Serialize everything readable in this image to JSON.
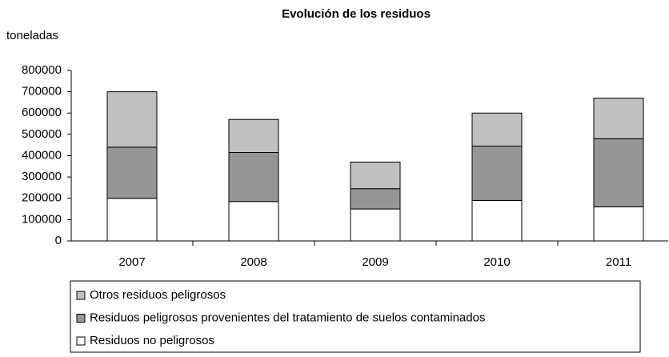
{
  "chart_data": {
    "type": "stacked_bar",
    "title": "Evolución de los residuos",
    "y_label": "toneladas",
    "categories": [
      "2007",
      "2008",
      "2009",
      "2010",
      "2011"
    ],
    "series": [
      {
        "name": "Otros residuos peligrosos",
        "color": "#c0c0c0",
        "values": [
          260000,
          155000,
          125000,
          155000,
          190000
        ]
      },
      {
        "name": "Residuos peligrosos provenientes del tratamiento de suelos contaminados",
        "color": "#969696",
        "values": [
          240000,
          230000,
          95000,
          255000,
          320000
        ]
      },
      {
        "name": "Residuos no peligrosos",
        "color": "#ffffff",
        "values": [
          200000,
          185000,
          150000,
          190000,
          160000
        ]
      }
    ],
    "ylim": [
      0,
      800000
    ],
    "yticks": [
      0,
      100000,
      200000,
      300000,
      400000,
      500000,
      600000,
      700000,
      800000
    ],
    "legend": "bottom"
  }
}
